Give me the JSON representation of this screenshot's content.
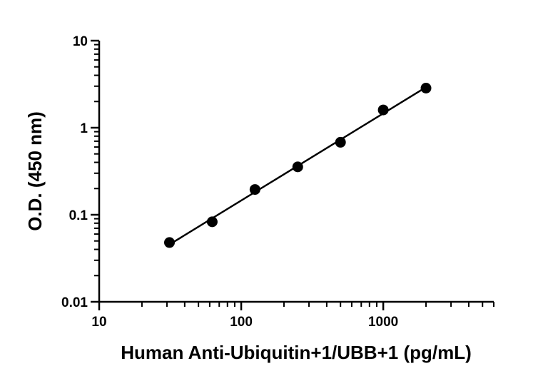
{
  "chart_data": {
    "type": "scatter",
    "title": "",
    "xlabel": "Human Anti-Ubiquitin+1/UBB+1 (pg/mL)",
    "ylabel": "O.D. (450 nm)",
    "xscale": "log",
    "yscale": "log",
    "xlim": [
      10,
      6000
    ],
    "ylim": [
      0.01,
      10
    ],
    "x_ticks": [
      10,
      100,
      1000
    ],
    "x_tick_labels": [
      "10",
      "100",
      "1000"
    ],
    "y_ticks": [
      0.01,
      0.1,
      1,
      10
    ],
    "y_tick_labels": [
      "0.01",
      "0.1",
      "1",
      "10"
    ],
    "grid": false,
    "legend": "none",
    "fit_line": true,
    "series": [
      {
        "x": [
          31.25,
          62.5,
          125,
          250,
          500,
          1000,
          2000
        ],
        "y": [
          0.048,
          0.083,
          0.195,
          0.355,
          0.68,
          1.6,
          2.85
        ],
        "marker": "filled-circle",
        "color": "#000000"
      }
    ]
  }
}
